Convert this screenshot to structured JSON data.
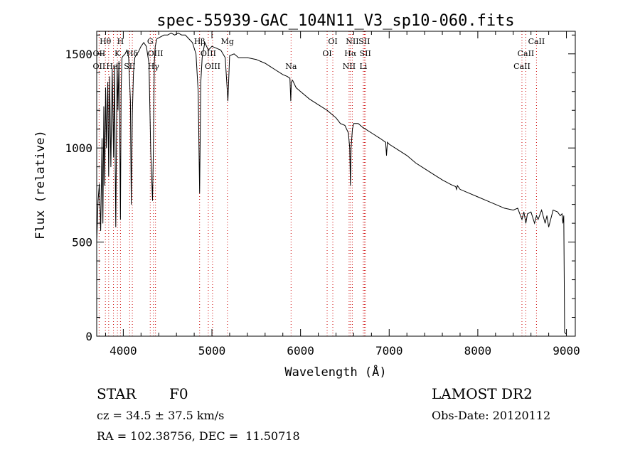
{
  "chart_data": {
    "type": "line",
    "title": "spec-55939-GAC_104N11_V3_sp10-060.fits",
    "xlabel": "Wavelength (Å)",
    "ylabel": "Flux (relative)",
    "xlim": [
      3700,
      9100
    ],
    "ylim": [
      0,
      1620
    ],
    "xticks": [
      4000,
      5000,
      6000,
      7000,
      8000,
      9000
    ],
    "yticks": [
      0,
      500,
      1000,
      1500
    ],
    "grid": false,
    "series": [
      {
        "x": [
          3700,
          3715,
          3730,
          3745,
          3760,
          3770,
          3780,
          3790,
          3800,
          3810,
          3825,
          3835,
          3845,
          3860,
          3875,
          3890,
          3900,
          3915,
          3930,
          3940,
          3950,
          3960,
          3968,
          3975,
          3985,
          4000,
          4020,
          4040,
          4060,
          4080,
          4090,
          4102,
          4115,
          4130,
          4150,
          4170,
          4200,
          4230,
          4260,
          4290,
          4310,
          4330,
          4340,
          4350,
          4360,
          4380,
          4420,
          4460,
          4500,
          4540,
          4580,
          4620,
          4660,
          4700,
          4740,
          4780,
          4820,
          4845,
          4861,
          4875,
          4890,
          4920,
          4960,
          5000,
          5050,
          5100,
          5150,
          5180,
          5200,
          5250,
          5300,
          5400,
          5500,
          5600,
          5700,
          5800,
          5850,
          5880,
          5890,
          5896,
          5910,
          5950,
          6000,
          6100,
          6200,
          6300,
          6400,
          6450,
          6500,
          6540,
          6555,
          6563,
          6570,
          6585,
          6600,
          6650,
          6700,
          6800,
          6900,
          6960,
          6970,
          6980,
          7000,
          7100,
          7200,
          7300,
          7400,
          7500,
          7600,
          7700,
          7750,
          7760,
          7770,
          7800,
          7900,
          8000,
          8100,
          8200,
          8300,
          8400,
          8450,
          8498,
          8520,
          8542,
          8560,
          8600,
          8640,
          8662,
          8680,
          8720,
          8760,
          8780,
          8800,
          8850,
          8900,
          8930,
          8950,
          8960,
          8970,
          8980,
          8990,
          9000
        ],
        "y": [
          500,
          720,
          810,
          560,
          1050,
          600,
          1220,
          800,
          1320,
          1000,
          1350,
          850,
          1380,
          900,
          1420,
          950,
          1430,
          580,
          1450,
          1200,
          1460,
          1100,
          620,
          1300,
          1480,
          1490,
          1500,
          1520,
          1480,
          1250,
          700,
          1180,
          1400,
          1480,
          1500,
          1510,
          1540,
          1560,
          1540,
          1450,
          980,
          720,
          1020,
          1450,
          1540,
          1580,
          1590,
          1600,
          1600,
          1610,
          1600,
          1610,
          1600,
          1600,
          1580,
          1560,
          1500,
          1300,
          760,
          1350,
          1480,
          1560,
          1520,
          1540,
          1530,
          1520,
          1480,
          1250,
          1490,
          1500,
          1480,
          1480,
          1470,
          1450,
          1420,
          1390,
          1380,
          1370,
          1250,
          1350,
          1360,
          1320,
          1300,
          1260,
          1230,
          1200,
          1160,
          1130,
          1120,
          1080,
          1000,
          800,
          1000,
          1100,
          1130,
          1130,
          1110,
          1080,
          1050,
          1030,
          960,
          1030,
          1020,
          990,
          960,
          920,
          890,
          860,
          830,
          805,
          795,
          780,
          800,
          780,
          760,
          740,
          720,
          700,
          680,
          670,
          680,
          620,
          660,
          600,
          650,
          660,
          600,
          640,
          620,
          670,
          600,
          640,
          580,
          670,
          660,
          640,
          650,
          600,
          640,
          20,
          15,
          10
        ]
      }
    ],
    "line_labels": [
      {
        "text": "Hθ",
        "x": 3798,
        "row": 0,
        "color": "#000000"
      },
      {
        "text": "OII",
        "x": 3727,
        "row": 1,
        "color": "#000000"
      },
      {
        "text": "OII",
        "x": 3727,
        "row": 2,
        "color": "#000000"
      },
      {
        "text": "H",
        "x": 3968,
        "row": 0,
        "color": "#000000"
      },
      {
        "text": "K",
        "x": 3934,
        "row": 1,
        "color": "#000000"
      },
      {
        "text": "HeI",
        "x": 3889,
        "row": 2,
        "color": "#000000"
      },
      {
        "text": "Hδ",
        "x": 4102,
        "row": 1,
        "color": "#000000"
      },
      {
        "text": "SII",
        "x": 4072,
        "row": 2,
        "color": "#000000"
      },
      {
        "text": "G",
        "x": 4304,
        "row": 0,
        "color": "#000000"
      },
      {
        "text": "OIII",
        "x": 4363,
        "row": 1,
        "color": "#000000"
      },
      {
        "text": "Hγ",
        "x": 4340,
        "row": 2,
        "color": "#000000"
      },
      {
        "text": "Hβ",
        "x": 4861,
        "row": 0,
        "color": "#000000"
      },
      {
        "text": "OIII",
        "x": 4959,
        "row": 1,
        "color": "#000000"
      },
      {
        "text": "OIII",
        "x": 5007,
        "row": 2,
        "color": "#000000"
      },
      {
        "text": "Mg",
        "x": 5175,
        "row": 0,
        "color": "#000000"
      },
      {
        "text": "Na",
        "x": 5893,
        "row": 2,
        "color": "#000000"
      },
      {
        "text": "OI",
        "x": 6364,
        "row": 0,
        "color": "#000000"
      },
      {
        "text": "OI",
        "x": 6300,
        "row": 1,
        "color": "#000000"
      },
      {
        "text": "NII",
        "x": 6584,
        "row": 0,
        "color": "#000000"
      },
      {
        "text": "SII",
        "x": 6720,
        "row": 0,
        "color": "#000000"
      },
      {
        "text": "Hα",
        "x": 6563,
        "row": 1,
        "color": "#000000"
      },
      {
        "text": "SII",
        "x": 6731,
        "row": 1,
        "color": "#000000"
      },
      {
        "text": "NII",
        "x": 6548,
        "row": 2,
        "color": "#000000"
      },
      {
        "text": "Li",
        "x": 6708,
        "row": 2,
        "color": "#000000"
      },
      {
        "text": "CaII",
        "x": 8662,
        "row": 0,
        "color": "#000000"
      },
      {
        "text": "CaII",
        "x": 8542,
        "row": 1,
        "color": "#000000"
      },
      {
        "text": "CaII",
        "x": 8498,
        "row": 2,
        "color": "#000000"
      }
    ],
    "line_markers": [
      3727,
      3798,
      3835,
      3889,
      3934,
      3968,
      4072,
      4102,
      4304,
      4340,
      4363,
      4861,
      4959,
      5007,
      5175,
      5893,
      6300,
      6364,
      6548,
      6563,
      6584,
      6708,
      6720,
      6731,
      8498,
      8542,
      8662
    ],
    "marker_color": "#cc0000"
  },
  "info": {
    "object_type": "STAR",
    "subclass": "F0",
    "survey": "LAMOST DR2",
    "redshift": "cz = 34.5 ± 37.5 km/s",
    "obs_date": "Obs-Date: 20120112",
    "coords": "RA = 102.38756, DEC =  11.50718"
  }
}
